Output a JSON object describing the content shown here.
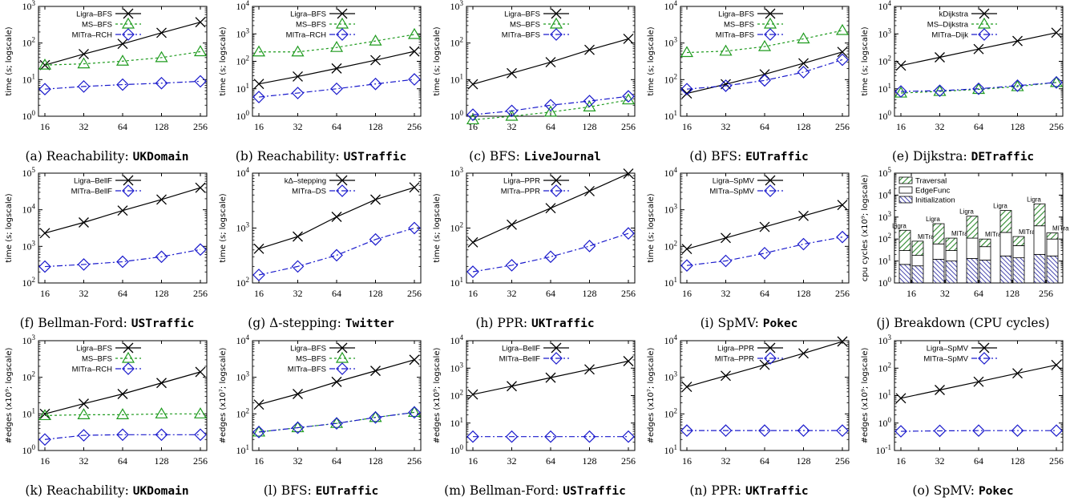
{
  "colors": {
    "ligra": "#000000",
    "ms": "#1f9b1f",
    "mitra": "#1a1acc",
    "traversal": "#2e8b2e",
    "init": "#1c1c9c"
  },
  "panels": [
    {
      "caption_prefix": "(a) Reachability: ",
      "caption_name": "UKDomain",
      "ylabel": "time (s; logscale)"
    },
    {
      "caption_prefix": "(b) Reachability: ",
      "caption_name": "USTraffic",
      "ylabel": "time (s; logscale)"
    },
    {
      "caption_prefix": "(c) BFS: ",
      "caption_name": "LiveJournal",
      "ylabel": "time (s; logscale)"
    },
    {
      "caption_prefix": "(d) BFS: ",
      "caption_name": "EUTraffic",
      "ylabel": "time (s; logscale)"
    },
    {
      "caption_prefix": "(e) Dijkstra: ",
      "caption_name": "DETraffic",
      "ylabel": "time (s; logscale)"
    },
    {
      "caption_prefix": "(f) Bellman-Ford: ",
      "caption_name": "USTraffic",
      "ylabel": "time (s; logscale)"
    },
    {
      "caption_prefix": "(g) Δ-stepping: ",
      "caption_name": "Twitter",
      "ylabel": "time (s; logscale)"
    },
    {
      "caption_prefix": "(h) PPR: ",
      "caption_name": "UKTraffic",
      "ylabel": "time (s; logscale)"
    },
    {
      "caption_prefix": "(i) SpMV: ",
      "caption_name": "Pokec",
      "ylabel": "time (s; logscale)"
    },
    {
      "caption_prefix": "(j) Breakdown (CPU cycles)",
      "caption_name": "",
      "ylabel": "cpu cycles (x10⁹; logscale)"
    },
    {
      "caption_prefix": "(k) Reachability: ",
      "caption_name": "UKDomain",
      "ylabel": "#edges (x10⁹; logscale)"
    },
    {
      "caption_prefix": "(l) BFS: ",
      "caption_name": "EUTraffic",
      "ylabel": "#edges (x10⁷; logscale)"
    },
    {
      "caption_prefix": "(m) Bellman-Ford: ",
      "caption_name": "USTraffic",
      "ylabel": "#edges (x10⁹; logscale)"
    },
    {
      "caption_prefix": "(n) PPR: ",
      "caption_name": "UKTraffic",
      "ylabel": "#edges (x10⁷; logscale)"
    },
    {
      "caption_prefix": "(o) SpMV: ",
      "caption_name": "Pokec",
      "ylabel": "#edges (x10⁹; logscale)"
    }
  ],
  "chart_data": [
    {
      "type": "line",
      "x": [
        16,
        32,
        64,
        128,
        256
      ],
      "ylim_exp": [
        0,
        3
      ],
      "yscale": "log",
      "series": [
        {
          "name": "Ligra–BFS",
          "style": "ligra",
          "values": [
            25,
            50,
            95,
            190,
            370
          ]
        },
        {
          "name": "MS–BFS",
          "style": "ms",
          "values": [
            25,
            27,
            32,
            40,
            58
          ]
        },
        {
          "name": "MITra–RCH",
          "style": "mitra",
          "values": [
            5.5,
            6.5,
            7.3,
            8,
            9
          ]
        }
      ]
    },
    {
      "type": "line",
      "x": [
        16,
        32,
        64,
        128,
        256
      ],
      "ylim_exp": [
        0,
        4
      ],
      "yscale": "log",
      "series": [
        {
          "name": "Ligra–BFS",
          "style": "ligra",
          "values": [
            15,
            28,
            55,
            110,
            230
          ]
        },
        {
          "name": "MS–BFS",
          "style": "ms",
          "values": [
            220,
            220,
            320,
            550,
            950
          ]
        },
        {
          "name": "MITra–RCH",
          "style": "mitra",
          "values": [
            5,
            7,
            10,
            15,
            22
          ]
        }
      ]
    },
    {
      "type": "line",
      "x": [
        16,
        32,
        64,
        128,
        256
      ],
      "ylim_exp": [
        0,
        3
      ],
      "yscale": "log",
      "series": [
        {
          "name": "Ligra–BFS",
          "style": "ligra",
          "values": [
            7.5,
            15,
            30,
            65,
            130
          ]
        },
        {
          "name": "MS–BFS",
          "style": "ms",
          "values": [
            0.8,
            1,
            1.3,
            1.8,
            2.8
          ]
        },
        {
          "name": "MITra–BFS",
          "style": "mitra",
          "values": [
            1.1,
            1.4,
            2,
            2.6,
            3.5
          ]
        }
      ]
    },
    {
      "type": "line",
      "x": [
        16,
        32,
        64,
        128,
        256
      ],
      "ylim_exp": [
        1,
        4
      ],
      "yscale": "log",
      "series": [
        {
          "name": "Ligra–BFS",
          "style": "ligra",
          "values": [
            42,
            75,
            140,
            280,
            570
          ]
        },
        {
          "name": "MS–BFS",
          "style": "ms",
          "values": [
            550,
            600,
            800,
            1300,
            2200
          ]
        },
        {
          "name": "MITra–BFS",
          "style": "mitra",
          "values": [
            55,
            68,
            95,
            160,
            350
          ]
        }
      ]
    },
    {
      "type": "line",
      "x": [
        16,
        32,
        64,
        128,
        256
      ],
      "ylim_exp": [
        0,
        4
      ],
      "yscale": "log",
      "series": [
        {
          "name": "kDijkstra",
          "style": "ligra",
          "values": [
            70,
            140,
            280,
            550,
            1100
          ]
        },
        {
          "name": "MS–Dijkstra",
          "style": "ms",
          "values": [
            7,
            8,
            9.5,
            12,
            17
          ]
        },
        {
          "name": "MITra–Dijk",
          "style": "mitra",
          "values": [
            8,
            8.5,
            10,
            13,
            17
          ]
        }
      ]
    },
    {
      "type": "line",
      "x": [
        16,
        32,
        64,
        128,
        256
      ],
      "ylim_exp": [
        2,
        5
      ],
      "yscale": "log",
      "series": [
        {
          "name": "Ligra–BellF",
          "style": "ligra",
          "values": [
            2300,
            4500,
            9500,
            19000,
            40000
          ]
        },
        {
          "name": "MITra–BellF",
          "style": "mitra",
          "values": [
            280,
            320,
            380,
            520,
            820
          ]
        }
      ]
    },
    {
      "type": "line",
      "x": [
        16,
        32,
        64,
        128,
        256
      ],
      "ylim_exp": [
        2,
        4
      ],
      "yscale": "log",
      "series": [
        {
          "name": "kΔ–stepping",
          "style": "ligra",
          "values": [
            420,
            700,
            1600,
            3300,
            5500
          ]
        },
        {
          "name": "MITra–DS",
          "style": "mitra",
          "values": [
            140,
            200,
            320,
            620,
            1000
          ]
        }
      ]
    },
    {
      "type": "line",
      "x": [
        16,
        32,
        64,
        128,
        256
      ],
      "ylim_exp": [
        1,
        3
      ],
      "yscale": "log",
      "series": [
        {
          "name": "Ligra–PPR",
          "style": "ligra",
          "values": [
            55,
            115,
            230,
            470,
            980
          ]
        },
        {
          "name": "MITra–PPR",
          "style": "mitra",
          "values": [
            16,
            21,
            30,
            47,
            80
          ]
        }
      ]
    },
    {
      "type": "line",
      "x": [
        16,
        32,
        64,
        128,
        256
      ],
      "ylim_exp": [
        1,
        4
      ],
      "yscale": "log",
      "series": [
        {
          "name": "Ligra–SpMV",
          "style": "ligra",
          "values": [
            85,
            170,
            340,
            680,
            1350
          ]
        },
        {
          "name": "MITra–SpMV",
          "style": "mitra",
          "values": [
            30,
            40,
            65,
            115,
            180
          ]
        }
      ]
    },
    {
      "type": "bar",
      "categories": [
        "16",
        "32",
        "64",
        "128",
        "256"
      ],
      "ylim_exp": [
        0,
        5
      ],
      "yscale": "log",
      "bar_labels": [
        "Ligra",
        "MITra"
      ],
      "legend": [
        "Traversal",
        "EdgeFunc",
        "Initialization"
      ],
      "stacks": [
        {
          "ligra": [
            7,
            30,
            250
          ],
          "mitra": [
            6,
            18,
            80
          ]
        },
        {
          "ligra": [
            12,
            60,
            500
          ],
          "mitra": [
            10,
            30,
            110
          ]
        },
        {
          "ligra": [
            13,
            110,
            1100
          ],
          "mitra": [
            11,
            45,
            100
          ]
        },
        {
          "ligra": [
            17,
            200,
            2000
          ],
          "mitra": [
            14,
            50,
            130
          ]
        },
        {
          "ligra": [
            20,
            400,
            4000
          ],
          "mitra": [
            17,
            100,
            190
          ]
        }
      ]
    },
    {
      "type": "line",
      "x": [
        16,
        32,
        64,
        128,
        256
      ],
      "ylim_exp": [
        0,
        3
      ],
      "yscale": "log",
      "series": [
        {
          "name": "Ligra–BFS",
          "style": "ligra",
          "values": [
            10,
            19,
            35,
            70,
            140
          ]
        },
        {
          "name": "MS–BFS",
          "style": "ms",
          "values": [
            9,
            9.5,
            9.5,
            10,
            10
          ]
        },
        {
          "name": "MITra–RCH",
          "style": "mitra",
          "values": [
            2,
            2.6,
            2.7,
            2.7,
            2.7
          ]
        }
      ]
    },
    {
      "type": "line",
      "x": [
        16,
        32,
        64,
        128,
        256
      ],
      "ylim_exp": [
        1,
        4
      ],
      "yscale": "log",
      "series": [
        {
          "name": "Ligra–BFS",
          "style": "ligra",
          "values": [
            180,
            350,
            750,
            1500,
            3000
          ]
        },
        {
          "name": "MS–BFS",
          "style": "ms",
          "values": [
            32,
            42,
            55,
            80,
            110
          ]
        },
        {
          "name": "MITra–BFS",
          "style": "mitra",
          "values": [
            32,
            42,
            55,
            80,
            110
          ]
        }
      ]
    },
    {
      "type": "line",
      "x": [
        16,
        32,
        64,
        128,
        256
      ],
      "ylim_exp": [
        0,
        4
      ],
      "yscale": "log",
      "series": [
        {
          "name": "Ligra–BellF",
          "style": "ligra",
          "values": [
            110,
            220,
            450,
            900,
            1800
          ]
        },
        {
          "name": "MITra–BellF",
          "style": "mitra",
          "values": [
            3.2,
            3.2,
            3.2,
            3.2,
            3.2
          ]
        }
      ]
    },
    {
      "type": "line",
      "x": [
        16,
        32,
        64,
        128,
        256
      ],
      "ylim_exp": [
        1,
        4
      ],
      "yscale": "log",
      "series": [
        {
          "name": "Ligra–PPR",
          "style": "ligra",
          "values": [
            550,
            1100,
            2200,
            4500,
            9500
          ]
        },
        {
          "name": "MITra–PPR",
          "style": "mitra",
          "values": [
            35,
            35,
            35,
            35,
            35
          ]
        }
      ]
    },
    {
      "type": "line",
      "x": [
        16,
        32,
        64,
        128,
        256
      ],
      "ylim_exp": [
        -1,
        3
      ],
      "yscale": "log",
      "series": [
        {
          "name": "Ligra–SpMV",
          "style": "ligra",
          "values": [
            8,
            16,
            32,
            65,
            130
          ]
        },
        {
          "name": "MITra–SpMV",
          "style": "mitra",
          "values": [
            0.5,
            0.52,
            0.53,
            0.53,
            0.53
          ]
        }
      ]
    }
  ]
}
